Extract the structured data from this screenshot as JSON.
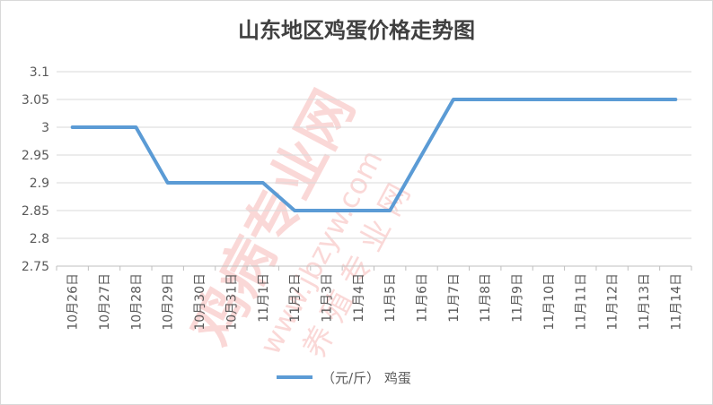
{
  "chart_data": {
    "type": "line",
    "title": "山东地区鸡蛋价格走势图",
    "xlabel": "",
    "ylabel": "",
    "categories": [
      "10月26日",
      "10月27日",
      "10月28日",
      "10月29日",
      "10月30日",
      "10月31日",
      "11月1日",
      "11月2日",
      "11月3日",
      "11月4日",
      "11月5日",
      "11月6日",
      "11月7日",
      "11月8日",
      "11月9日",
      "11月10日",
      "11月11日",
      "11月12日",
      "11月13日",
      "11月14日"
    ],
    "series": [
      {
        "name": "（元/斤） 鸡蛋",
        "values": [
          3.0,
          3.0,
          3.0,
          2.9,
          2.9,
          2.9,
          2.9,
          2.85,
          2.85,
          2.85,
          2.85,
          2.95,
          3.05,
          3.05,
          3.05,
          3.05,
          3.05,
          3.05,
          3.05,
          3.05
        ]
      }
    ],
    "ylim": [
      2.75,
      3.1
    ],
    "yticks": [
      "2.75",
      "2.8",
      "2.85",
      "2.9",
      "2.95",
      "3",
      "3.05",
      "3.1"
    ],
    "grid": true,
    "legend_position": "bottom",
    "colors": {
      "line": "#5b9bd5",
      "grid": "#d9d9d9",
      "axis_text": "#595959"
    }
  },
  "watermark": {
    "main": "鸡病专业网",
    "url": "www.jbzyw.com",
    "faint": "养 殖 专 业 网"
  }
}
